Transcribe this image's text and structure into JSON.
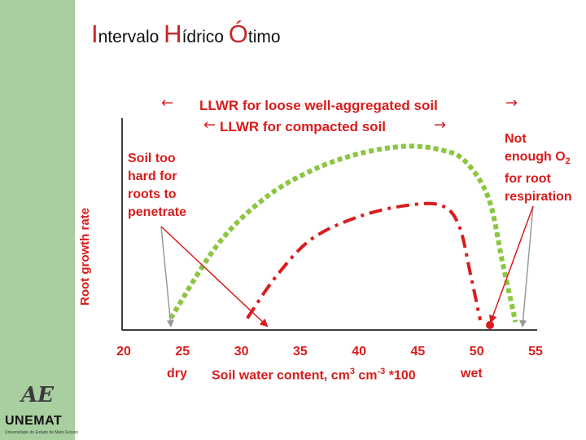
{
  "title": {
    "p1": "I",
    "p2": "ntervalo ",
    "p3": "H",
    "p4": "ídrico ",
    "p5": "Ó",
    "p6": "timo"
  },
  "logo": {
    "mark": "AE",
    "name": "UNEMAT",
    "sub": "Universidade do Estado de Mato Grosso"
  },
  "chart_data": {
    "type": "line",
    "ylabel": "Root growth rate",
    "xlabel": "Soil water content, cm3 cm-3 *100",
    "xlabel_parts": {
      "main": "Soil water content, cm",
      "sup1": "3",
      "mid": " cm",
      "sup2": "-3",
      "end": " *100"
    },
    "x_ticks": [
      "20",
      "25",
      "30",
      "35",
      "40",
      "45",
      "50",
      "55"
    ],
    "x_tick_values": [
      20,
      25,
      30,
      35,
      40,
      45,
      50,
      55
    ],
    "x_sub_labels": {
      "dry": "dry",
      "wet": "wet"
    },
    "xlim": [
      20,
      55
    ],
    "series": [
      {
        "name": "LLWR for loose well-aggregated soil",
        "style": "green-dotted-thick",
        "color": "#8cc63f",
        "x": [
          24.0,
          28.0,
          32.0,
          36.0,
          40.0,
          44.0,
          47.0,
          49.0,
          51.0,
          52.2,
          53.3
        ],
        "y": [
          0.05,
          0.45,
          0.7,
          0.85,
          0.94,
          0.98,
          0.96,
          0.9,
          0.7,
          0.35,
          0.03
        ]
      },
      {
        "name": "LLWR for compacted soil",
        "style": "red-dashdot",
        "color": "#d91c1c",
        "x": [
          30.5,
          33.0,
          36.0,
          40.0,
          44.0,
          47.0,
          48.5,
          49.5,
          50.3
        ],
        "y": [
          0.05,
          0.28,
          0.48,
          0.6,
          0.66,
          0.66,
          0.55,
          0.28,
          0.04
        ]
      }
    ],
    "legend": {
      "loose": "LLWR for loose well-aggregated soil",
      "compacted": "LLWR for compacted  soil",
      "left_arrow": "←",
      "right_arrow": "→"
    },
    "annotations": {
      "too_hard": [
        "Soil too",
        "hard for",
        "roots to",
        "penetrate"
      ],
      "no_o2": {
        "l1": "Not",
        "l2a": "enough O",
        "l2sub": "2",
        "l3": "for root",
        "l4": "respiration"
      }
    },
    "colors": {
      "axis_text": "#d91c1c",
      "green": "#8cc63f",
      "red": "#d91c1c",
      "pointer": "#999999"
    }
  }
}
